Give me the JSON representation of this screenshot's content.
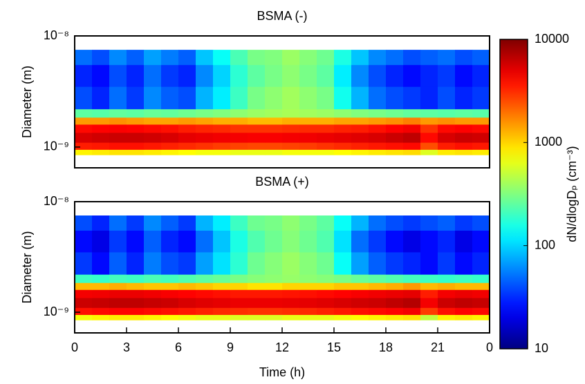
{
  "chart_data": [
    {
      "type": "heatmap",
      "title": "BSMA (-)",
      "ylabel": "Diameter (m)",
      "log_y": true,
      "xlim": [
        0,
        24
      ],
      "ylim": [
        6.5e-10,
        1e-08
      ],
      "yticks": [
        {
          "value": 1e-09,
          "label": "10⁻⁹"
        },
        {
          "value": 1e-08,
          "label": "10⁻⁸"
        }
      ],
      "x_edges": [
        0,
        1,
        2,
        3,
        4,
        5,
        6,
        7,
        8,
        9,
        10,
        11,
        12,
        13,
        14,
        15,
        16,
        17,
        18,
        19,
        20,
        21,
        22,
        23,
        24
      ],
      "y_edges": [
        8.5e-10,
        9.5e-10,
        1.1e-09,
        1.35e-09,
        1.6e-09,
        1.85e-09,
        2.2e-09,
        3.5e-09,
        5.5e-09,
        7.5e-09
      ],
      "z": [
        [
          800,
          850,
          900,
          900,
          850,
          800,
          750,
          700,
          700,
          650,
          650,
          650,
          700,
          700,
          700,
          750,
          800,
          850,
          900,
          950,
          600,
          850,
          900,
          850
        ],
        [
          3500,
          3600,
          3800,
          3800,
          3600,
          3400,
          3200,
          3000,
          2800,
          2700,
          2600,
          2600,
          2700,
          2800,
          3000,
          3200,
          3400,
          3600,
          3800,
          4000,
          2500,
          3500,
          3800,
          3600
        ],
        [
          5500,
          5800,
          6000,
          6000,
          5800,
          5500,
          5000,
          4800,
          4600,
          4500,
          4400,
          4400,
          4500,
          4600,
          4800,
          5000,
          5200,
          5500,
          6000,
          6500,
          4000,
          5500,
          6000,
          5800
        ],
        [
          4000,
          4200,
          4300,
          4200,
          4000,
          3800,
          3500,
          3300,
          3200,
          3000,
          3000,
          3000,
          3100,
          3200,
          3200,
          3400,
          3500,
          3800,
          4200,
          4500,
          3000,
          4000,
          4200,
          4000
        ],
        [
          1500,
          1500,
          1600,
          1500,
          1400,
          1400,
          1500,
          1400,
          1300,
          1300,
          1200,
          1200,
          1300,
          1300,
          1300,
          1400,
          1400,
          1500,
          1600,
          1800,
          1500,
          1600,
          1500,
          1500
        ],
        [
          250,
          240,
          260,
          250,
          270,
          260,
          280,
          300,
          320,
          350,
          380,
          400,
          420,
          400,
          380,
          350,
          320,
          300,
          280,
          260,
          250,
          240,
          250,
          240
        ],
        [
          40,
          30,
          50,
          35,
          60,
          45,
          40,
          80,
          120,
          200,
          300,
          350,
          400,
          350,
          300,
          150,
          80,
          50,
          40,
          35,
          30,
          40,
          30,
          35
        ],
        [
          30,
          25,
          40,
          30,
          50,
          35,
          30,
          60,
          100,
          180,
          250,
          300,
          350,
          300,
          250,
          120,
          60,
          40,
          30,
          25,
          30,
          35,
          25,
          30
        ],
        [
          50,
          40,
          60,
          45,
          70,
          55,
          45,
          90,
          140,
          220,
          300,
          320,
          380,
          330,
          280,
          160,
          90,
          60,
          50,
          40,
          45,
          50,
          40,
          45
        ]
      ]
    },
    {
      "type": "heatmap",
      "title": "BSMA (+)",
      "ylabel": "Diameter (m)",
      "xlabel": "Time (h)",
      "log_y": true,
      "xlim": [
        0,
        24
      ],
      "ylim": [
        6.5e-10,
        1e-08
      ],
      "xticks": [
        0,
        3,
        6,
        9,
        12,
        15,
        18,
        21,
        {
          "value": 24,
          "label": "0"
        }
      ],
      "yticks": [
        {
          "value": 1e-09,
          "label": "10⁻⁹"
        },
        {
          "value": 1e-08,
          "label": "10⁻⁸"
        }
      ],
      "x_edges": [
        0,
        1,
        2,
        3,
        4,
        5,
        6,
        7,
        8,
        9,
        10,
        11,
        12,
        13,
        14,
        15,
        16,
        17,
        18,
        19,
        20,
        21,
        22,
        23,
        24
      ],
      "y_edges": [
        8.5e-10,
        9.5e-10,
        1.1e-09,
        1.35e-09,
        1.6e-09,
        1.85e-09,
        2.2e-09,
        3.5e-09,
        5.5e-09,
        7.5e-09
      ],
      "z": [
        [
          700,
          800,
          850,
          850,
          800,
          750,
          700,
          650,
          650,
          600,
          600,
          600,
          650,
          650,
          650,
          700,
          750,
          800,
          850,
          900,
          500,
          800,
          850,
          800
        ],
        [
          3800,
          4000,
          4200,
          4200,
          4000,
          3800,
          3600,
          3400,
          3200,
          3100,
          3000,
          3000,
          3100,
          3200,
          3400,
          3600,
          3800,
          4000,
          4200,
          4500,
          2800,
          3800,
          4200,
          4000
        ],
        [
          6000,
          6200,
          6500,
          6500,
          6200,
          6000,
          5500,
          5200,
          5000,
          4800,
          4800,
          4800,
          4900,
          5000,
          5200,
          5500,
          5800,
          6000,
          6500,
          7000,
          4500,
          6000,
          6500,
          6200
        ],
        [
          4500,
          4600,
          4800,
          4800,
          4600,
          4400,
          4200,
          4000,
          3800,
          3600,
          3600,
          3600,
          3700,
          3800,
          4000,
          4200,
          4400,
          4600,
          4800,
          5000,
          3500,
          4500,
          4800,
          4600
        ],
        [
          1200,
          1200,
          1300,
          1200,
          1100,
          1100,
          1200,
          1100,
          1000,
          1000,
          900,
          900,
          1000,
          1000,
          1000,
          1100,
          1100,
          1200,
          1300,
          1500,
          1200,
          1300,
          1200,
          1200
        ],
        [
          200,
          190,
          210,
          200,
          220,
          210,
          230,
          250,
          270,
          300,
          330,
          350,
          370,
          350,
          330,
          300,
          270,
          250,
          230,
          210,
          200,
          190,
          200,
          190
        ],
        [
          35,
          25,
          45,
          30,
          55,
          40,
          35,
          70,
          110,
          180,
          280,
          330,
          380,
          330,
          280,
          140,
          70,
          45,
          35,
          30,
          25,
          35,
          25,
          30
        ],
        [
          25,
          20,
          35,
          25,
          45,
          30,
          25,
          50,
          90,
          160,
          230,
          280,
          330,
          280,
          230,
          110,
          50,
          35,
          25,
          20,
          25,
          30,
          20,
          25
        ],
        [
          40,
          30,
          50,
          35,
          60,
          45,
          35,
          80,
          120,
          200,
          280,
          300,
          350,
          300,
          250,
          140,
          80,
          50,
          40,
          35,
          40,
          45,
          35,
          40
        ]
      ]
    }
  ],
  "colorbar": {
    "label": "dN/dlogDₚ (cm⁻³)",
    "colormap": "jet",
    "log": true,
    "clim": [
      10,
      10000
    ],
    "ticks": [
      10,
      100,
      1000,
      10000
    ]
  }
}
